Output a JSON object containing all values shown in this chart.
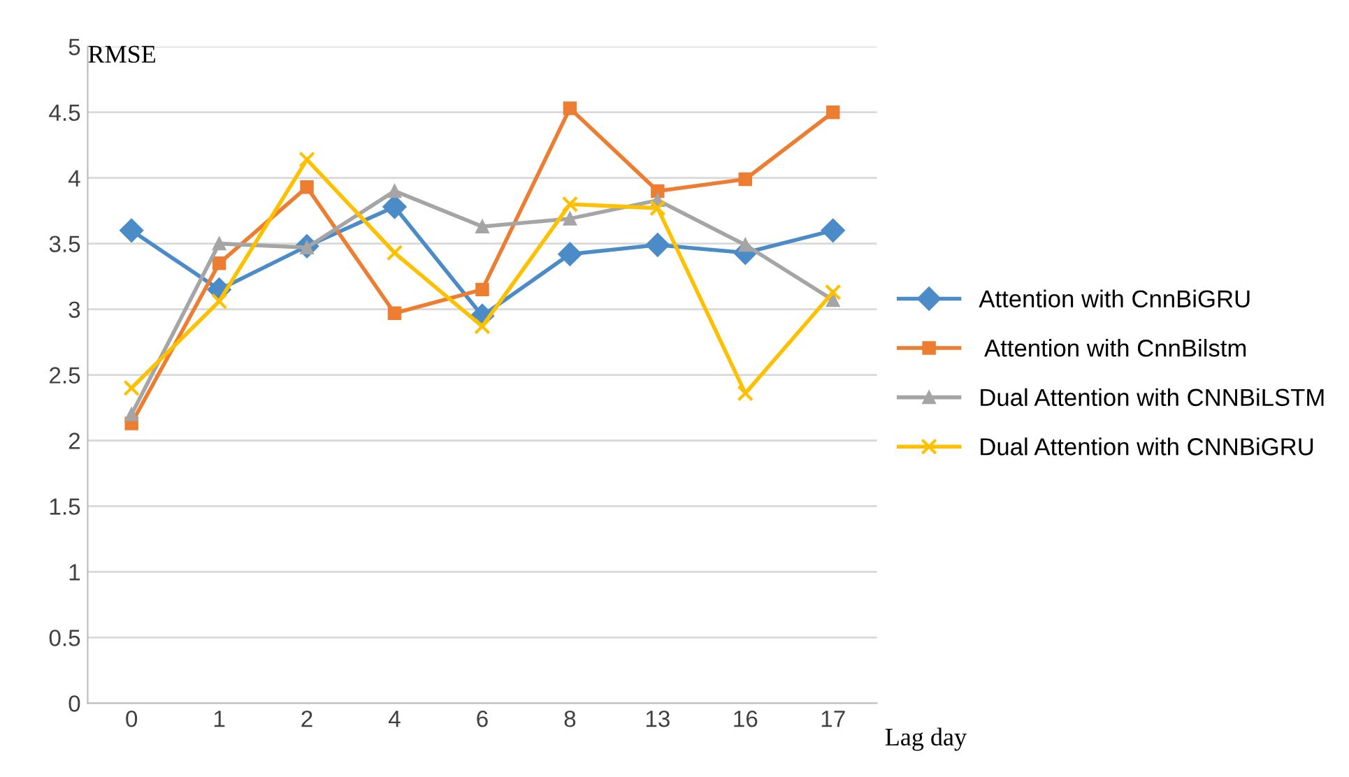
{
  "chart_data": {
    "type": "line",
    "ylabel": "RMSE",
    "xlabel": "Lag day",
    "categories": [
      "0",
      "1",
      "2",
      "4",
      "6",
      "8",
      "13",
      "16",
      "17"
    ],
    "series": [
      {
        "name": "Attention with CnnBiGRU",
        "color": "#4a8bc8",
        "marker": "diamond",
        "values": [
          3.6,
          3.15,
          3.48,
          3.78,
          2.95,
          3.42,
          3.49,
          3.43,
          3.6
        ]
      },
      {
        "name": " Attention with CnnBilstm",
        "color": "#ed7d31",
        "marker": "square",
        "values": [
          2.13,
          3.35,
          3.93,
          2.97,
          3.15,
          4.53,
          3.9,
          3.99,
          4.5
        ]
      },
      {
        "name": "Dual Attention with CNNBiLSTM",
        "color": "#a5a5a5",
        "marker": "triangle",
        "values": [
          2.2,
          3.5,
          3.47,
          3.9,
          3.63,
          3.69,
          3.83,
          3.49,
          3.07
        ]
      },
      {
        "name": "Dual Attention with CNNBiGRU",
        "color": "#ffc000",
        "marker": "cross",
        "values": [
          2.4,
          3.06,
          4.14,
          3.43,
          2.87,
          3.8,
          3.77,
          2.36,
          3.13
        ]
      }
    ],
    "ylim": [
      0,
      5
    ],
    "yticks": [
      0,
      0.5,
      1,
      1.5,
      2,
      2.5,
      3,
      3.5,
      4,
      4.5,
      5
    ],
    "grid": "y",
    "legend": "right",
    "line_style": "solid"
  }
}
